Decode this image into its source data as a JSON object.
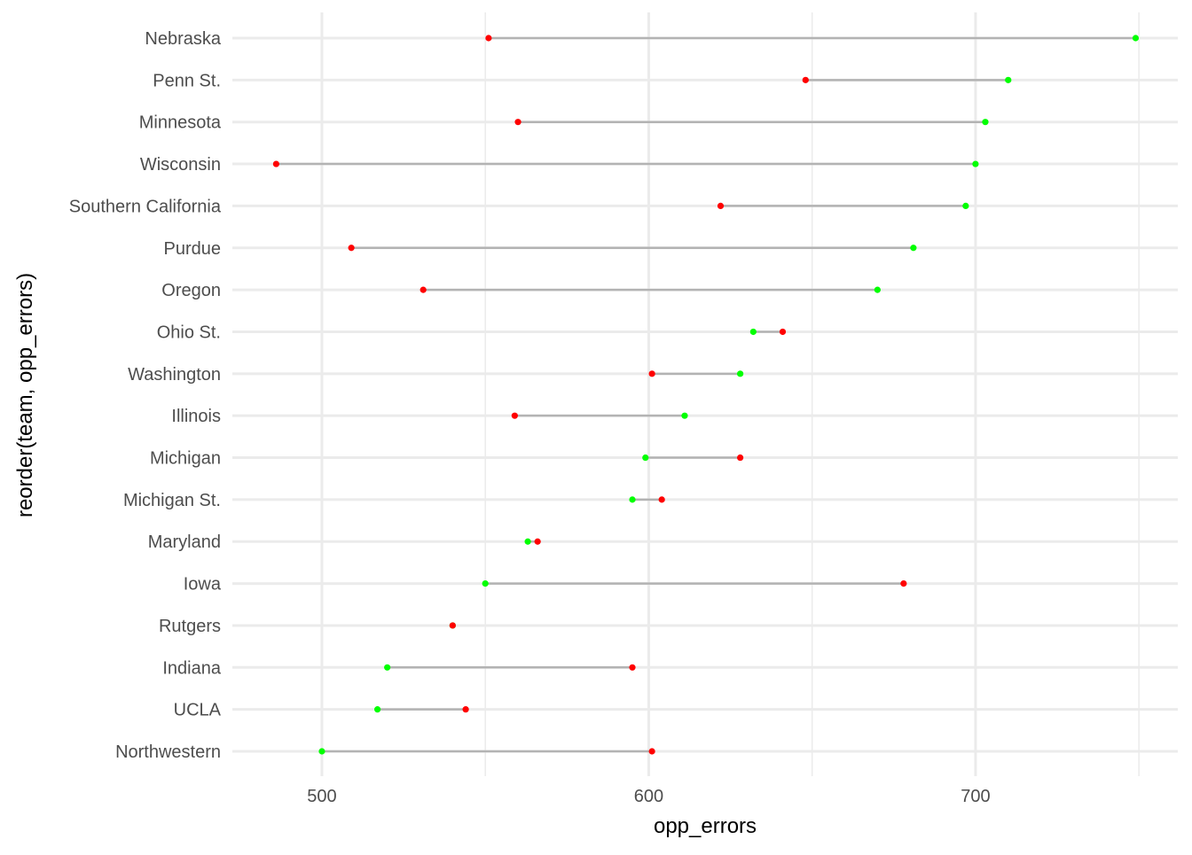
{
  "chart_data": {
    "type": "dumbbell",
    "title": "",
    "xlabel": "opp_errors",
    "ylabel": "reorder(team, opp_errors)",
    "xlim": [
      472.6,
      761.9
    ],
    "x_ticks": [
      500,
      600,
      700
    ],
    "x_minor_ticks": [
      550,
      650,
      750
    ],
    "grid": true,
    "legend": "none",
    "segment_color": "#b3b3b3",
    "categories": [
      "Nebraska",
      "Penn St.",
      "Minnesota",
      "Wisconsin",
      "Southern California",
      "Purdue",
      "Oregon",
      "Ohio St.",
      "Washington",
      "Illinois",
      "Michigan",
      "Michigan St.",
      "Maryland",
      "Iowa",
      "Rutgers",
      "Indiana",
      "UCLA",
      "Northwestern"
    ],
    "series": [
      {
        "color": "#00ff00",
        "values": [
          749,
          710,
          703,
          700,
          697,
          681,
          670,
          632,
          628,
          611,
          599,
          595,
          563,
          550,
          540,
          520,
          517,
          500
        ]
      },
      {
        "color": "#ff0000",
        "values": [
          551,
          648,
          560,
          486,
          622,
          509,
          531,
          641,
          601,
          559,
          628,
          604,
          566,
          678,
          540,
          595,
          544,
          601
        ]
      }
    ]
  }
}
